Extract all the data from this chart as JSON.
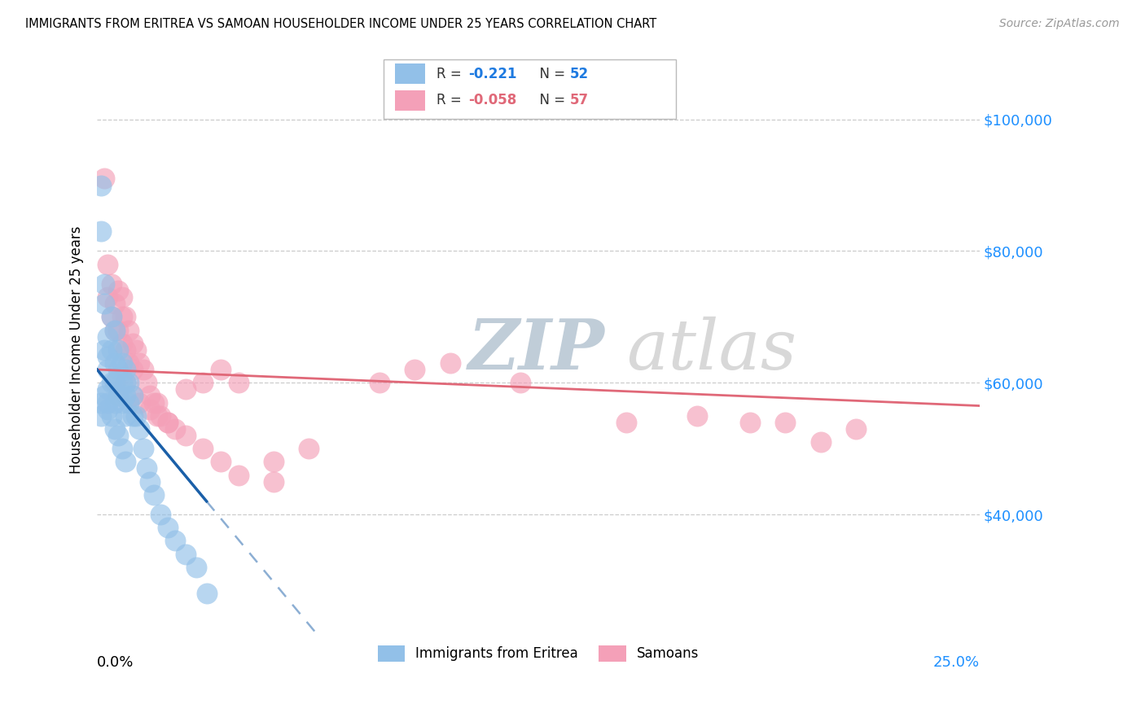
{
  "title": "IMMIGRANTS FROM ERITREA VS SAMOAN HOUSEHOLDER INCOME UNDER 25 YEARS CORRELATION CHART",
  "source": "Source: ZipAtlas.com",
  "ylabel": "Householder Income Under 25 years",
  "ytick_labels": [
    "$40,000",
    "$60,000",
    "$80,000",
    "$100,000"
  ],
  "ytick_values": [
    40000,
    60000,
    80000,
    100000
  ],
  "xmin": 0.0,
  "xmax": 0.25,
  "ymin": 22000,
  "ymax": 108000,
  "eritrea_color": "#92C0E8",
  "samoan_color": "#F4A0B8",
  "eritrea_line_color": "#1A5FA8",
  "samoan_line_color": "#E06878",
  "watermark_zip": "ZIP",
  "watermark_atlas": "atlas",
  "bottom_legend": [
    "Immigrants from Eritrea",
    "Samoans"
  ],
  "eritrea_x": [
    0.001,
    0.001,
    0.001,
    0.002,
    0.002,
    0.002,
    0.002,
    0.003,
    0.003,
    0.003,
    0.003,
    0.003,
    0.004,
    0.004,
    0.004,
    0.005,
    0.005,
    0.005,
    0.005,
    0.006,
    0.006,
    0.006,
    0.007,
    0.007,
    0.007,
    0.008,
    0.008,
    0.008,
    0.008,
    0.009,
    0.009,
    0.01,
    0.01,
    0.011,
    0.012,
    0.013,
    0.014,
    0.015,
    0.016,
    0.018,
    0.02,
    0.022,
    0.025,
    0.028,
    0.031,
    0.001,
    0.003,
    0.004,
    0.005,
    0.006,
    0.007,
    0.008
  ],
  "eritrea_y": [
    90000,
    83000,
    55000,
    75000,
    72000,
    65000,
    58000,
    67000,
    64000,
    62000,
    59000,
    56000,
    70000,
    65000,
    60000,
    68000,
    63000,
    60000,
    57000,
    65000,
    62000,
    58000,
    63000,
    60000,
    57000,
    62000,
    60000,
    58000,
    55000,
    60000,
    57000,
    58000,
    55000,
    55000,
    53000,
    50000,
    47000,
    45000,
    43000,
    40000,
    38000,
    36000,
    34000,
    32000,
    28000,
    57000,
    57000,
    55000,
    53000,
    52000,
    50000,
    48000
  ],
  "samoan_x": [
    0.002,
    0.003,
    0.003,
    0.004,
    0.004,
    0.005,
    0.005,
    0.006,
    0.006,
    0.007,
    0.007,
    0.007,
    0.008,
    0.008,
    0.009,
    0.009,
    0.01,
    0.01,
    0.011,
    0.012,
    0.013,
    0.014,
    0.015,
    0.016,
    0.017,
    0.018,
    0.02,
    0.022,
    0.025,
    0.03,
    0.035,
    0.04,
    0.05,
    0.06,
    0.08,
    0.09,
    0.1,
    0.12,
    0.15,
    0.17,
    0.185,
    0.195,
    0.205,
    0.215,
    0.005,
    0.006,
    0.008,
    0.01,
    0.012,
    0.015,
    0.017,
    0.02,
    0.025,
    0.03,
    0.035,
    0.04,
    0.05
  ],
  "samoan_y": [
    91000,
    78000,
    73000,
    75000,
    70000,
    72000,
    68000,
    74000,
    68000,
    73000,
    70000,
    66000,
    70000,
    65000,
    68000,
    63000,
    66000,
    62000,
    65000,
    63000,
    62000,
    60000,
    58000,
    57000,
    57000,
    55000,
    54000,
    53000,
    59000,
    60000,
    62000,
    60000,
    48000,
    50000,
    60000,
    62000,
    63000,
    60000,
    54000,
    55000,
    54000,
    54000,
    51000,
    53000,
    60000,
    58000,
    60000,
    58000,
    57000,
    56000,
    55000,
    54000,
    52000,
    50000,
    48000,
    46000,
    45000
  ]
}
